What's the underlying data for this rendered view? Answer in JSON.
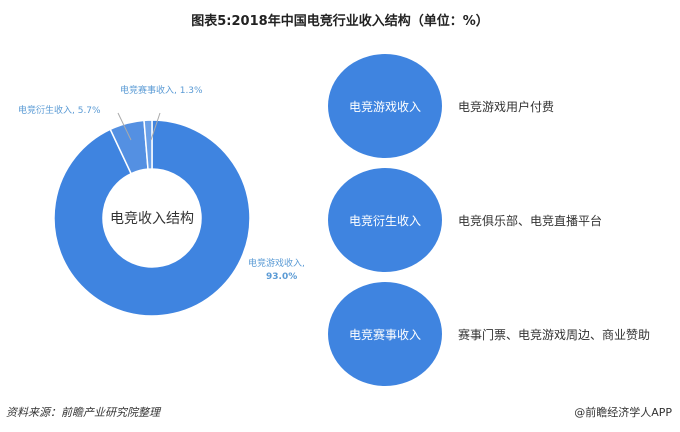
{
  "title": "图表5:2018年中国电竞行业收入结构（单位：%）",
  "chart_data": {
    "type": "pie",
    "donut": true,
    "center_label": "电竞收入结构",
    "slices": [
      {
        "name": "电竞游戏收入",
        "value": 93.0,
        "label": "电竞游戏收入,",
        "value_label": "93.0%",
        "color": "#3f84e0"
      },
      {
        "name": "电竞衍生收入",
        "value": 5.7,
        "label": "电竞衍生收入, 5.7%",
        "color": "#5490e2"
      },
      {
        "name": "电竞赛事收入",
        "value": 1.3,
        "label": "电竞赛事收入, 1.3%",
        "color": "#6aa0e8"
      }
    ],
    "label_color": "#5b9bd5"
  },
  "breakdown": [
    {
      "name": "电竞游戏收入",
      "desc": "电竞游戏用户付费"
    },
    {
      "name": "电竞衍生收入",
      "desc": "电竞俱乐部、电竞直播平台"
    },
    {
      "name": "电竞赛事收入",
      "desc": "赛事门票、电竞游戏周边、商业赞助"
    }
  ],
  "bubble_color": "#3f84e0",
  "source": "资料来源：前瞻产业研究院整理",
  "watermark": "@前瞻经济学人APP"
}
